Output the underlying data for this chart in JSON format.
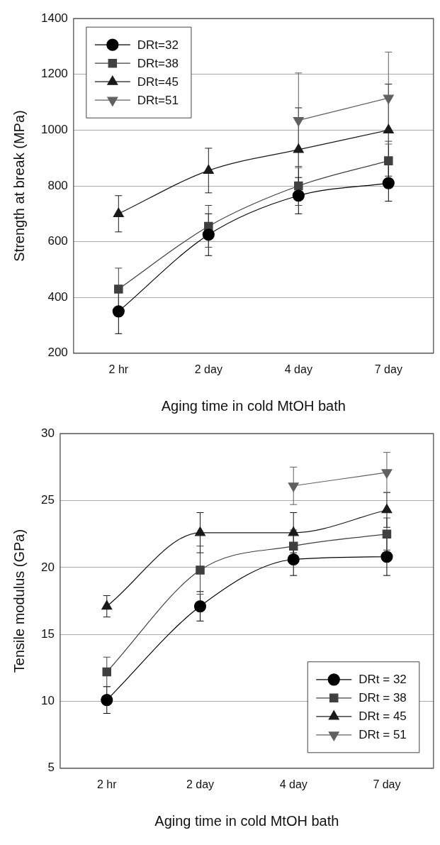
{
  "chart_data": [
    {
      "type": "line",
      "xlabel": "Aging time in cold MtOH bath",
      "ylabel": "Strength at break (MPa)",
      "categories": [
        "2 hr",
        "2 day",
        "4 day",
        "7 day"
      ],
      "ylim": [
        200,
        1400
      ],
      "yticks": [
        200,
        400,
        600,
        800,
        1000,
        1200,
        1400
      ],
      "grid": "y",
      "legend": "top left",
      "series": [
        {
          "name": "DRt=32",
          "color": "#000000",
          "marker": "circle",
          "values": [
            350,
            625,
            765,
            810
          ],
          "errors": [
            80,
            75,
            65,
            65
          ]
        },
        {
          "name": "DRt=38",
          "color": "#404040",
          "marker": "square",
          "values": [
            430,
            655,
            800,
            890
          ],
          "errors": [
            75,
            75,
            70,
            70
          ]
        },
        {
          "name": "DRt=45",
          "color": "#1a1a1a",
          "marker": "triangle",
          "values": [
            700,
            855,
            930,
            1000
          ],
          "errors": [
            65,
            80,
            150,
            165
          ]
        },
        {
          "name": "DRt=51",
          "color": "#606060",
          "marker": "triangle_down",
          "values": [
            null,
            null,
            1035,
            1115
          ],
          "errors": [
            null,
            null,
            170,
            165
          ]
        }
      ]
    },
    {
      "type": "line",
      "xlabel": "Aging time in cold MtOH bath",
      "ylabel": "Tensile modulus (GPa)",
      "categories": [
        "2 hr",
        "2 day",
        "4 day",
        "7 day"
      ],
      "ylim": [
        5,
        30
      ],
      "yticks": [
        5,
        10,
        15,
        20,
        25,
        30
      ],
      "grid": "y",
      "legend": "bottom right",
      "series": [
        {
          "name": "DRt = 32",
          "color": "#000000",
          "marker": "circle",
          "values": [
            10.1,
            17.1,
            20.6,
            20.8
          ],
          "errors": [
            1,
            1.1,
            1.2,
            1.4
          ]
        },
        {
          "name": "DRt = 38",
          "color": "#404040",
          "marker": "square",
          "values": [
            12.2,
            19.8,
            21.6,
            22.5
          ],
          "errors": [
            1.1,
            1.8,
            1.2,
            1.2
          ]
        },
        {
          "name": "DRt = 45",
          "color": "#1a1a1a",
          "marker": "triangle",
          "values": [
            17.1,
            22.6,
            22.6,
            24.3
          ],
          "errors": [
            0.8,
            1.5,
            1.5,
            1.3
          ]
        },
        {
          "name": "DRt = 51",
          "color": "#606060",
          "marker": "triangle_down",
          "values": [
            null,
            null,
            26.1,
            27.1
          ],
          "errors": [
            null,
            null,
            1.4,
            1.5
          ]
        }
      ]
    }
  ]
}
